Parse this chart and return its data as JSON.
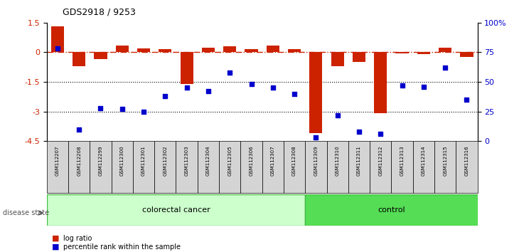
{
  "title": "GDS2918 / 9253",
  "samples": [
    "GSM112207",
    "GSM112208",
    "GSM112299",
    "GSM112300",
    "GSM112301",
    "GSM112302",
    "GSM112303",
    "GSM112304",
    "GSM112305",
    "GSM112306",
    "GSM112307",
    "GSM112308",
    "GSM112309",
    "GSM112310",
    "GSM112311",
    "GSM112312",
    "GSM112313",
    "GSM112314",
    "GSM112315",
    "GSM112316"
  ],
  "log_ratio": [
    1.3,
    -0.7,
    -0.35,
    0.35,
    0.2,
    0.15,
    -1.6,
    0.25,
    0.3,
    0.15,
    0.35,
    0.15,
    -4.1,
    -0.7,
    -0.5,
    -3.1,
    -0.05,
    -0.1,
    0.25,
    -0.25
  ],
  "percentile": [
    78,
    10,
    28,
    27,
    25,
    38,
    45,
    42,
    58,
    48,
    45,
    40,
    3,
    22,
    8,
    6,
    47,
    46,
    62,
    35
  ],
  "n_cancer": 12,
  "n_control": 8,
  "ylim_left": [
    -4.5,
    1.5
  ],
  "ylim_right": [
    0,
    100
  ],
  "yticks_left": [
    1.5,
    0,
    -1.5,
    -3,
    -4.5
  ],
  "yticks_right": [
    100,
    75,
    50,
    25,
    0
  ],
  "hline_dots": [
    -1.5,
    -3
  ],
  "bar_color": "#cc2200",
  "scatter_color": "#0000cc",
  "cancer_bg": "#ccffcc",
  "control_bg": "#55dd55",
  "xlabel_cancer": "colorectal cancer",
  "xlabel_control": "control",
  "disease_label": "disease state",
  "legend_bar": "log ratio",
  "legend_scatter": "percentile rank within the sample",
  "bar_width": 0.6
}
